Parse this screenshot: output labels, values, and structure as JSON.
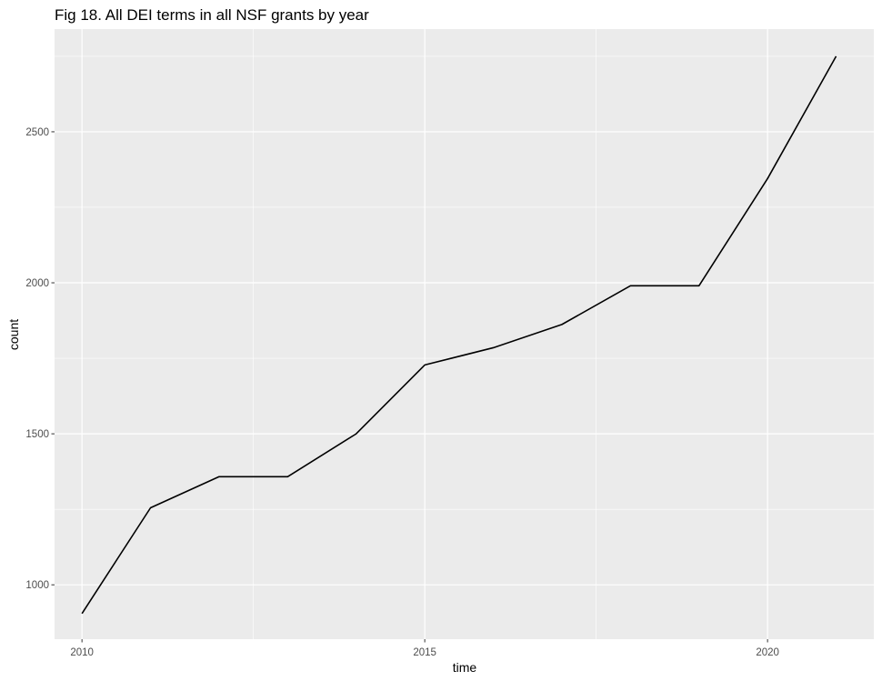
{
  "chart_data": {
    "type": "line",
    "title": "Fig 18. All DEI terms in all NSF grants by year",
    "xlabel": "time",
    "ylabel": "count",
    "x": [
      2010,
      2011,
      2012,
      2013,
      2014,
      2015,
      2016,
      2017,
      2018,
      2019,
      2020,
      2021
    ],
    "series": [
      {
        "values": [
          905,
          1255,
          1358,
          1358,
          1500,
          1728,
          1785,
          1862,
          1990,
          1990,
          2345,
          2750
        ]
      }
    ],
    "xlim": [
      2009.6,
      2021.55
    ],
    "ylim": [
      820,
      2840
    ],
    "x_ticks": [
      2010,
      2015,
      2020
    ],
    "y_ticks": [
      1000,
      1500,
      2000,
      2500
    ],
    "x_tick_labels": [
      "2010",
      "2015",
      "2020"
    ],
    "y_tick_labels": [
      "1000",
      "1500",
      "2000",
      "2500"
    ],
    "grid": true,
    "legend": "none",
    "colors": {
      "panel_background": "#ebebeb",
      "grid_line": "#ffffff",
      "series_line": "#000000",
      "tick_text": "#4d4d4d"
    }
  }
}
